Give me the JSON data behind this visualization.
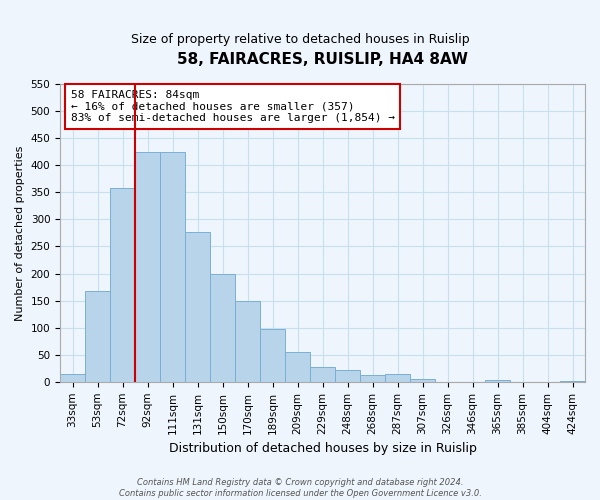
{
  "title": "58, FAIRACRES, RUISLIP, HA4 8AW",
  "subtitle": "Size of property relative to detached houses in Ruislip",
  "xlabel": "Distribution of detached houses by size in Ruislip",
  "ylabel": "Number of detached properties",
  "categories": [
    "33sqm",
    "53sqm",
    "72sqm",
    "92sqm",
    "111sqm",
    "131sqm",
    "150sqm",
    "170sqm",
    "189sqm",
    "209sqm",
    "229sqm",
    "248sqm",
    "268sqm",
    "287sqm",
    "307sqm",
    "326sqm",
    "346sqm",
    "365sqm",
    "385sqm",
    "404sqm",
    "424sqm"
  ],
  "values": [
    15,
    167,
    357,
    425,
    425,
    277,
    200,
    150,
    97,
    55,
    28,
    22,
    12,
    15,
    5,
    0,
    0,
    3,
    0,
    0,
    2
  ],
  "bar_color": "#b8d4ea",
  "bar_edge_color": "#7aafd4",
  "vline_color": "#cc0000",
  "vline_x_index": 3,
  "annotation_line1": "58 FAIRACRES: 84sqm",
  "annotation_line2": "← 16% of detached houses are smaller (357)",
  "annotation_line3": "83% of semi-detached houses are larger (1,854) →",
  "annotation_box_color": "#ffffff",
  "annotation_box_edge": "#cc0000",
  "ylim": [
    0,
    550
  ],
  "yticks": [
    0,
    50,
    100,
    150,
    200,
    250,
    300,
    350,
    400,
    450,
    500,
    550
  ],
  "footer1": "Contains HM Land Registry data © Crown copyright and database right 2024.",
  "footer2": "Contains public sector information licensed under the Open Government Licence v3.0.",
  "grid_color": "#c8dff0",
  "background_color": "#eef5fc",
  "title_fontsize": 11,
  "subtitle_fontsize": 9,
  "ylabel_fontsize": 8,
  "xlabel_fontsize": 9,
  "tick_fontsize": 7.5,
  "annotation_fontsize": 8,
  "footer_fontsize": 6
}
